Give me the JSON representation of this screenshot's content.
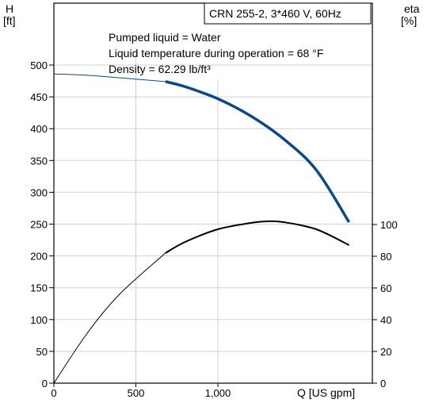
{
  "chart_data": {
    "type": "line",
    "title": "CRN 255-2, 3*460 V, 60Hz",
    "annotations": [
      "Pumped liquid = Water",
      "Liquid temperature during operation = 68 °F",
      "Density = 62.29 lb/ft³"
    ],
    "left_axis": {
      "label_line1": "H",
      "label_line2": "[ft]",
      "ylim": [
        0,
        550
      ],
      "ticks": [
        "0",
        "50",
        "100",
        "150",
        "200",
        "250",
        "300",
        "350",
        "400",
        "450",
        "500"
      ]
    },
    "right_axis": {
      "label_line1": "eta",
      "label_line2": "[%]",
      "ylim": [
        0,
        100
      ],
      "ticks": [
        "0",
        "20",
        "40",
        "60",
        "80",
        "100"
      ]
    },
    "x_axis": {
      "label": "Q [US gpm]",
      "xlim": [
        0,
        1900
      ],
      "ticks": [
        "0",
        "500",
        "1,000"
      ]
    },
    "grid": true,
    "series": [
      {
        "axis": "left",
        "color": "#0a4a8a",
        "x": [
          0,
          200,
          400,
          680,
          800,
          1000,
          1200,
          1400,
          1600,
          1800
        ],
        "y": [
          486,
          484,
          480,
          474,
          466,
          447,
          420,
          384,
          335,
          253
        ],
        "bold_from_x": 680
      },
      {
        "axis": "right",
        "color": "#000000",
        "x": [
          0,
          200,
          400,
          680,
          800,
          1000,
          1200,
          1300,
          1400,
          1600,
          1800
        ],
        "y": [
          0,
          31,
          56,
          82,
          89,
          97,
          101,
          102,
          101.5,
          97,
          87
        ],
        "bold_from_x": 680
      }
    ]
  }
}
